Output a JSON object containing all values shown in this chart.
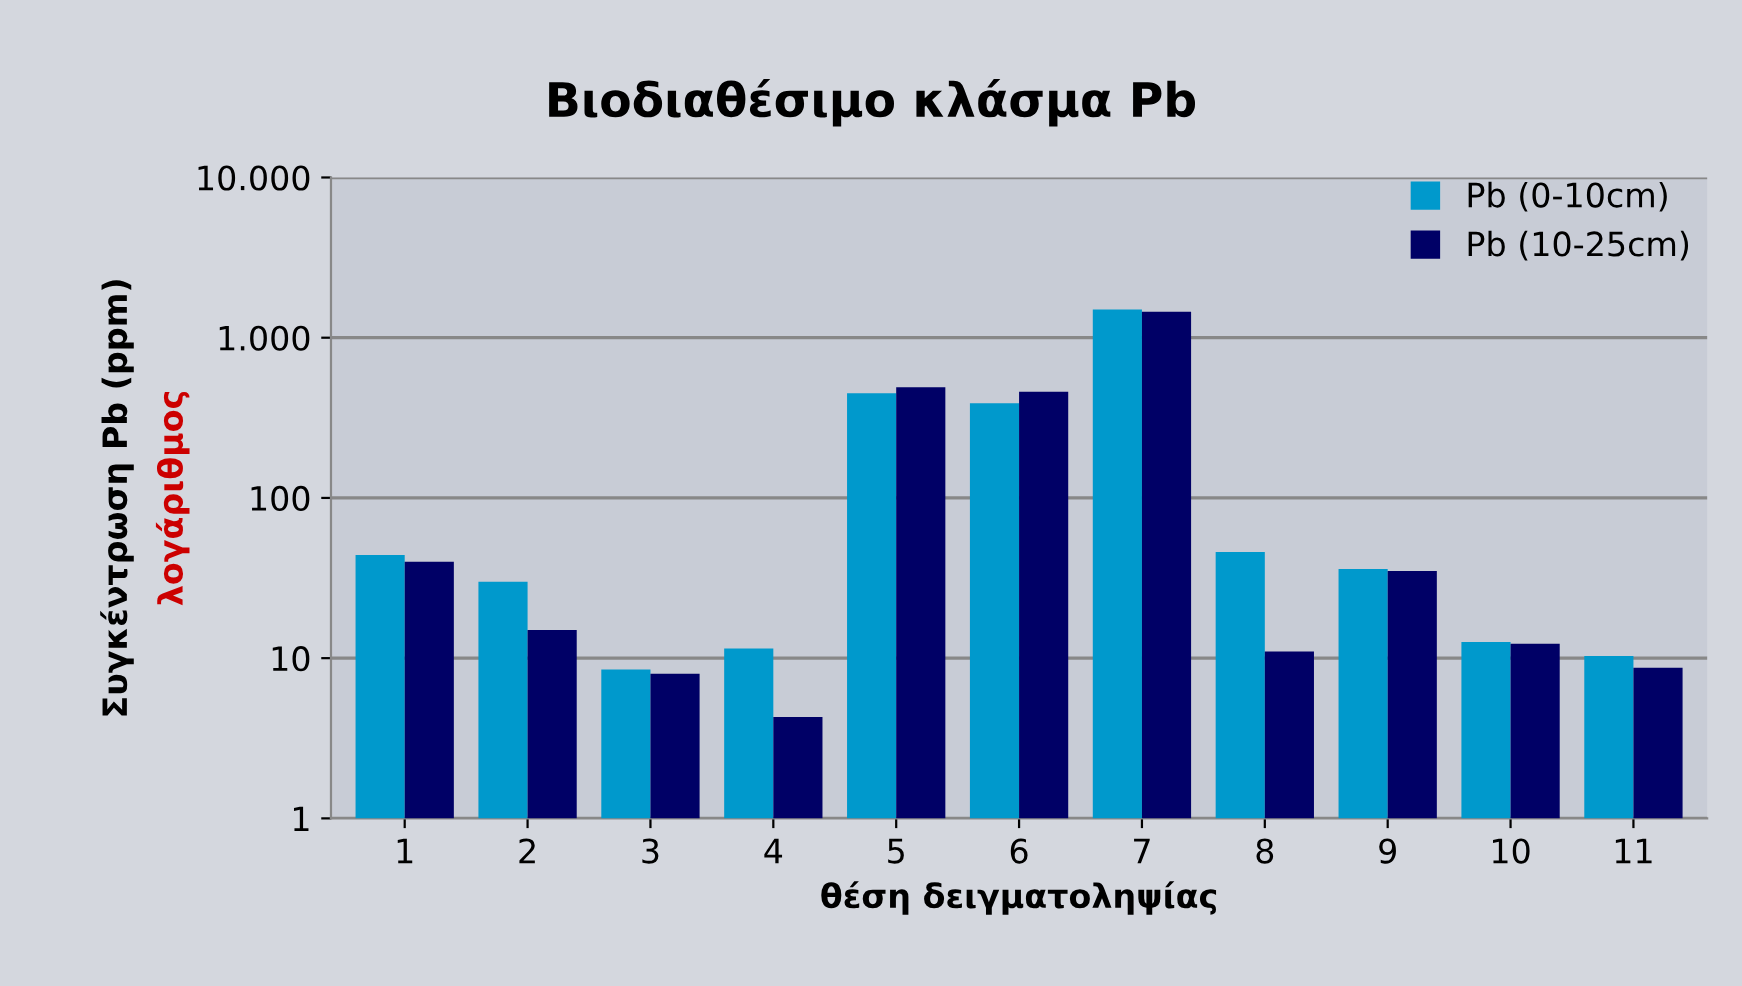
{
  "chart_data": {
    "type": "bar",
    "title": "Βιοδιαθέσιμο κλάσμα Pb",
    "xlabel": "θέση δειγματοληψίας",
    "ylabel": "Συγκέντρωση Pb (ppm)",
    "annotations": [
      "λογάριθμος"
    ],
    "categories": [
      "1",
      "2",
      "3",
      "4",
      "5",
      "6",
      "7",
      "8",
      "9",
      "10",
      "11"
    ],
    "series": [
      {
        "name": "Pb (0-10cm)",
        "color": "#0099cc",
        "values": [
          44,
          30,
          8.5,
          11.5,
          450,
          390,
          1500,
          46,
          36,
          12.6,
          10.3
        ]
      },
      {
        "name": "Pb (10-25cm)",
        "color": "#000066",
        "values": [
          40,
          15,
          8,
          4.3,
          490,
          460,
          1450,
          11,
          35,
          12.3,
          8.7
        ]
      }
    ],
    "log": true,
    "ylim": [
      1,
      10000
    ],
    "yticks": [
      {
        "value": 1,
        "label": "1"
      },
      {
        "value": 10,
        "label": "10"
      },
      {
        "value": 100,
        "label": "100"
      },
      {
        "value": 1000,
        "label": "1.000"
      },
      {
        "value": 10000,
        "label": "10.000"
      }
    ],
    "grid": "y",
    "legend": "top right"
  }
}
